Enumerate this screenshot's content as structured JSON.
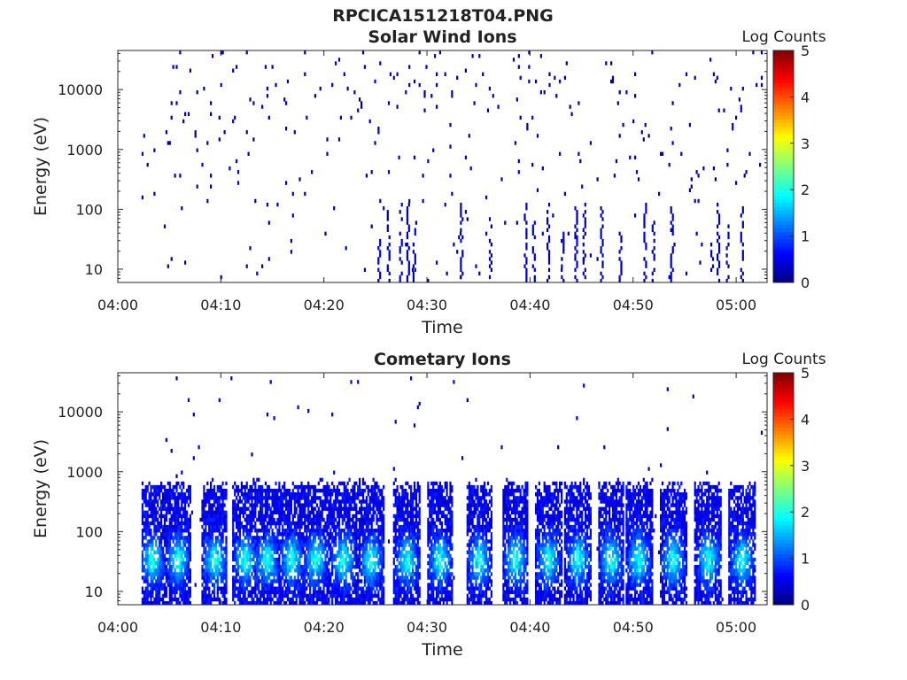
{
  "figure_title": "RPCICA151218T04.PNG",
  "colorbar_colors": [
    "#00007f",
    "#0000ff",
    "#007fff",
    "#00ffff",
    "#7fff7f",
    "#ffff00",
    "#ff7f00",
    "#ff0000",
    "#7f0000"
  ],
  "chart_data": [
    {
      "type": "heatmap",
      "title": "Solar Wind Ions",
      "xlabel": "Time",
      "ylabel": "Energy (eV)",
      "yscale": "log",
      "xlim": [
        "04:00",
        "05:03"
      ],
      "ylim": [
        6,
        45000
      ],
      "x_ticks": [
        "04:00",
        "04:10",
        "04:20",
        "04:30",
        "04:40",
        "04:50",
        "05:00"
      ],
      "y_ticks": [
        10,
        100,
        1000,
        10000
      ],
      "y_tick_labels": [
        "10",
        "100",
        "1000",
        "10000"
      ],
      "colorbar": {
        "label": "Log Counts",
        "range": [
          0,
          5
        ],
        "ticks": [
          "0",
          "1",
          "2",
          "3",
          "4",
          "5"
        ]
      },
      "data_coverage_minutes": [
        2.3,
        62.5
      ],
      "intensity_note": "mostly low counts (log 0-0.5), sparse isolated pixels across 10 eV - 30 keV; denser low-energy (<100 eV) vertical streaks near 04:25-04:29, 04:33, 04:39-04:45, 04:50-04:53, 04:57-05:01"
    },
    {
      "type": "heatmap",
      "title": "Cometary Ions",
      "xlabel": "Time",
      "ylabel": "Energy (eV)",
      "yscale": "log",
      "xlim": [
        "04:00",
        "05:03"
      ],
      "ylim": [
        6,
        45000
      ],
      "x_ticks": [
        "04:00",
        "04:10",
        "04:20",
        "04:30",
        "04:40",
        "04:50",
        "05:00"
      ],
      "y_ticks": [
        10,
        100,
        1000,
        10000
      ],
      "y_tick_labels": [
        "10",
        "100",
        "1000",
        "10000"
      ],
      "colorbar": {
        "label": "Log Counts",
        "range": [
          0,
          5
        ],
        "ticks": [
          "0",
          "1",
          "2",
          "3",
          "4",
          "5"
        ]
      },
      "data_coverage_minutes": [
        2.3,
        62.5
      ],
      "intensity_note": "periodic bursts roughly every 3-4 minutes, energy 6-700 eV, peak log counts about 1.5-2 at 20-50 eV; sparse pixels up to ~10 keV"
    }
  ]
}
